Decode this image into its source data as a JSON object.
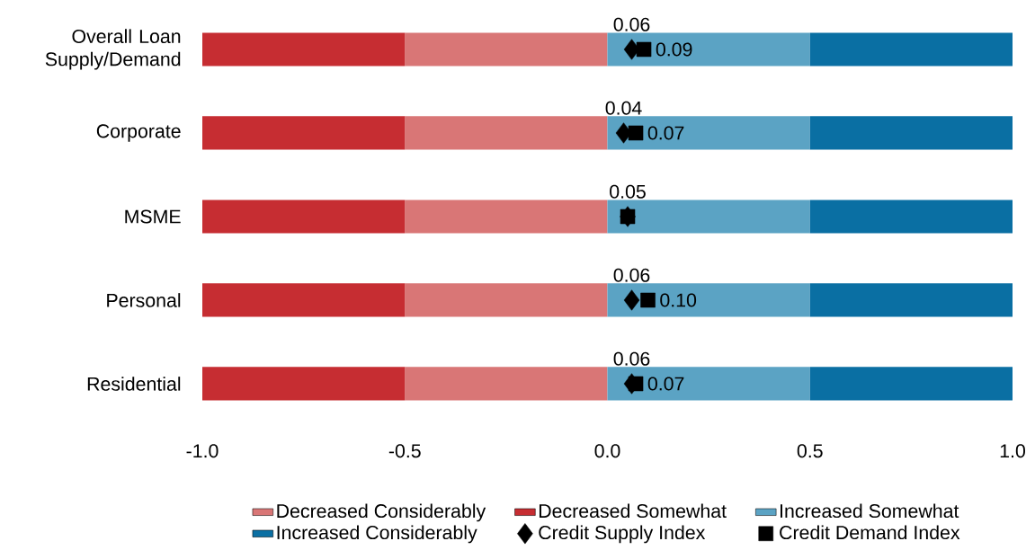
{
  "chart_data": {
    "type": "bar",
    "orientation": "horizontal",
    "stacked": true,
    "legend": "bottom",
    "categories": [
      "Overall Loan Supply/Demand",
      "Corporate",
      "MSME",
      "Personal",
      "Residential"
    ],
    "xlim": [
      -1,
      1
    ],
    "xticks": [
      {
        "value": -1,
        "label": "-1.0"
      },
      {
        "value": -0.5,
        "label": "-0.5"
      },
      {
        "value": 0,
        "label": "0.0"
      },
      {
        "value": 0.5,
        "label": "0.5"
      },
      {
        "value": 1,
        "label": "1.0"
      }
    ],
    "series": [
      {
        "name": "Decreased Considerably",
        "color": "#d97676",
        "values": [
          -0.5,
          -0.5,
          -0.5,
          -0.5,
          -0.5
        ]
      },
      {
        "name": "Decreased Somewhat",
        "color": "#c62d32",
        "values": [
          -0.5,
          -0.5,
          -0.5,
          -0.5,
          -0.5
        ]
      },
      {
        "name": "Increased Somewhat",
        "color": "#5ba3c4",
        "values": [
          0.5,
          0.5,
          0.5,
          0.5,
          0.5
        ]
      },
      {
        "name": "Increased Considerably",
        "color": "#0a6fa3",
        "values": [
          0.5,
          0.5,
          0.5,
          0.5,
          0.5
        ]
      },
      {
        "name": "Credit Supply Index",
        "type": "scatter",
        "marker": "diamond",
        "color": "#000000",
        "values": [
          0.06,
          0.04,
          0.05,
          0.06,
          0.06
        ],
        "value_labels": [
          "0.06",
          "0.04",
          "0.05",
          "0.06",
          "0.06"
        ]
      },
      {
        "name": "Credit Demand Index",
        "type": "scatter",
        "marker": "square",
        "color": "#000000",
        "values": [
          0.09,
          0.07,
          0.05,
          0.1,
          0.07
        ],
        "value_labels": [
          "0.09",
          "0.07",
          null,
          "0.10",
          "0.07"
        ]
      }
    ]
  }
}
